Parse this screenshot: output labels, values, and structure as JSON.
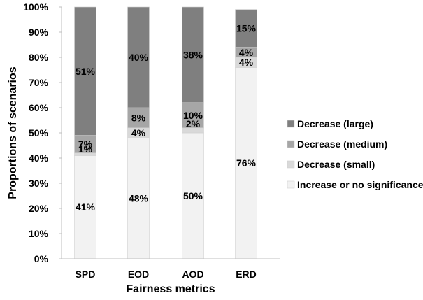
{
  "chart_data": {
    "type": "bar",
    "stacked": true,
    "categories": [
      "SPD",
      "EOD",
      "AOD",
      "ERD"
    ],
    "series": [
      {
        "name": "Increase or no significance",
        "values": [
          41,
          48,
          50,
          76
        ],
        "color": "#f2f2f2"
      },
      {
        "name": "Decrease (small)",
        "values": [
          1,
          4,
          2,
          4
        ],
        "color": "#d9d9d9"
      },
      {
        "name": "Decrease (medium)",
        "values": [
          7,
          8,
          10,
          4
        ],
        "color": "#a6a6a6"
      },
      {
        "name": "Decrease (large)",
        "values": [
          51,
          40,
          38,
          15
        ],
        "color": "#7f7f7f"
      }
    ],
    "labels": [
      [
        "41%",
        "48%",
        "50%",
        "76%"
      ],
      [
        "1%",
        "4%",
        "2%",
        "4%"
      ],
      [
        "7%",
        "8%",
        "10%",
        "4%"
      ],
      [
        "51%",
        "40%",
        "38%",
        "15%"
      ]
    ],
    "xlabel": "Fairness metrics",
    "ylabel": "Proportions of scenarios",
    "ylim": [
      0,
      100
    ],
    "yticks": [
      "0%",
      "10%",
      "20%",
      "30%",
      "40%",
      "50%",
      "60%",
      "70%",
      "80%",
      "90%",
      "100%"
    ],
    "legend": {
      "position": "right",
      "order": [
        "Decrease (large)",
        "Decrease (medium)",
        "Decrease (small)",
        "Increase or no significance"
      ]
    },
    "grid": false
  }
}
